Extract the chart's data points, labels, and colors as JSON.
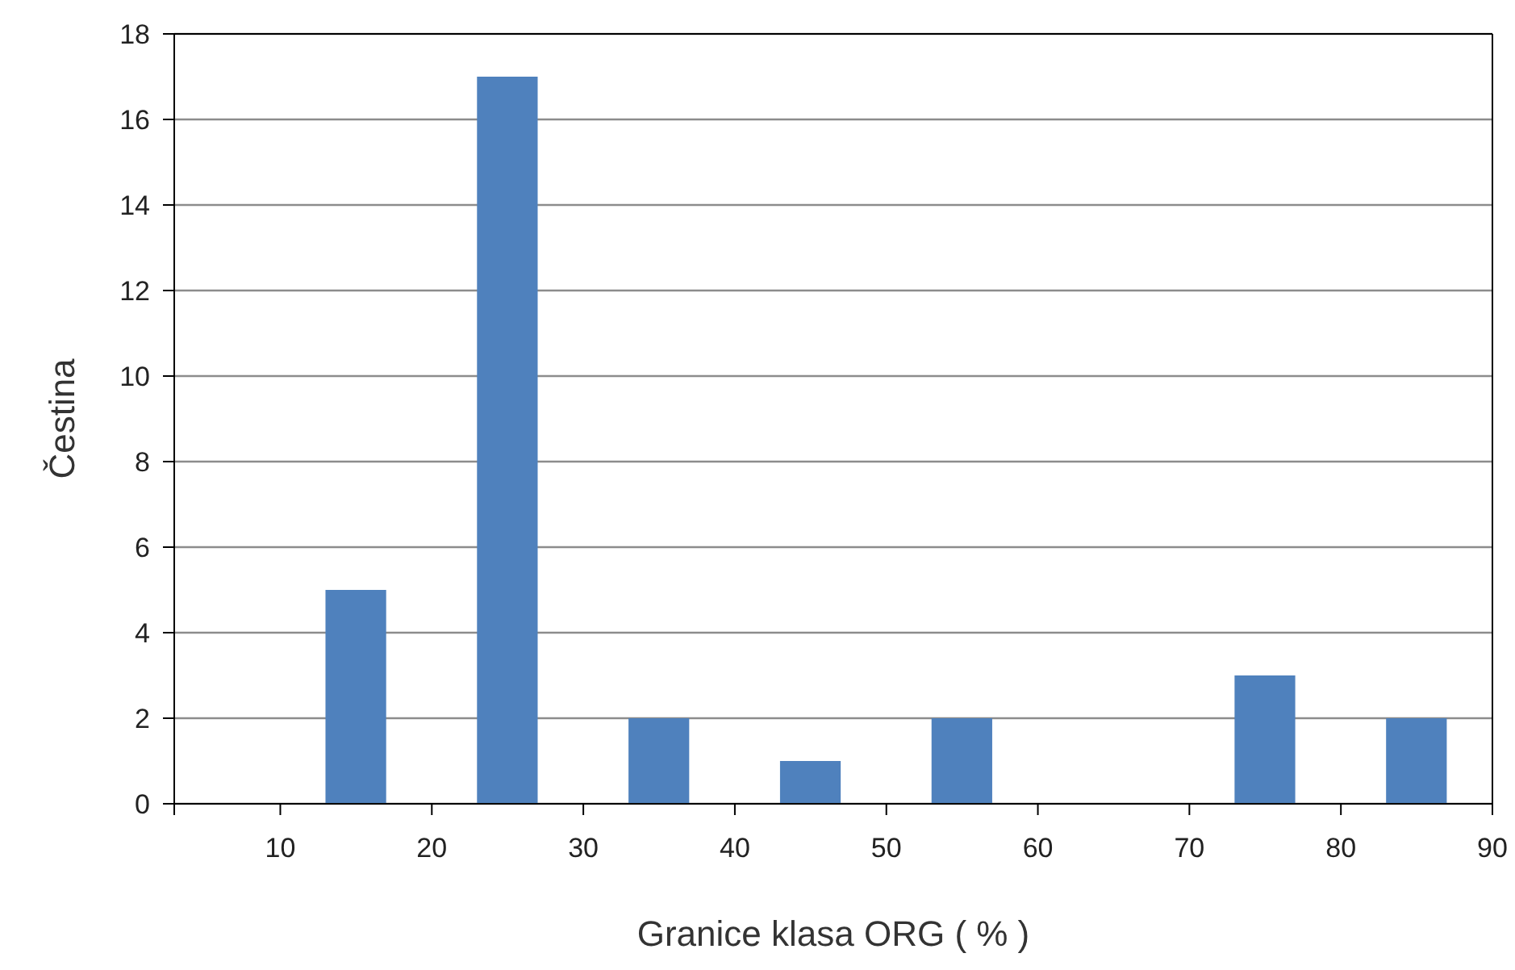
{
  "chart_data": {
    "type": "histogram",
    "xlabel": "Granice klasa   ORG ( % )",
    "ylabel": "Čestina",
    "bins": [
      10,
      20,
      30,
      40,
      50,
      60,
      70,
      80,
      90
    ],
    "values": [
      5,
      17,
      2,
      1,
      2,
      0,
      3,
      2
    ],
    "color": "#4f81bd",
    "xlim": [
      3,
      90
    ],
    "xticks": [
      {
        "value": 3,
        "label": null
      },
      10,
      20,
      30,
      40,
      50,
      60,
      70,
      80,
      90
    ],
    "ylim": [
      0,
      18
    ],
    "yticks": [
      0,
      2,
      4,
      6,
      8,
      10,
      12,
      14,
      16,
      18
    ],
    "grid": "y"
  }
}
